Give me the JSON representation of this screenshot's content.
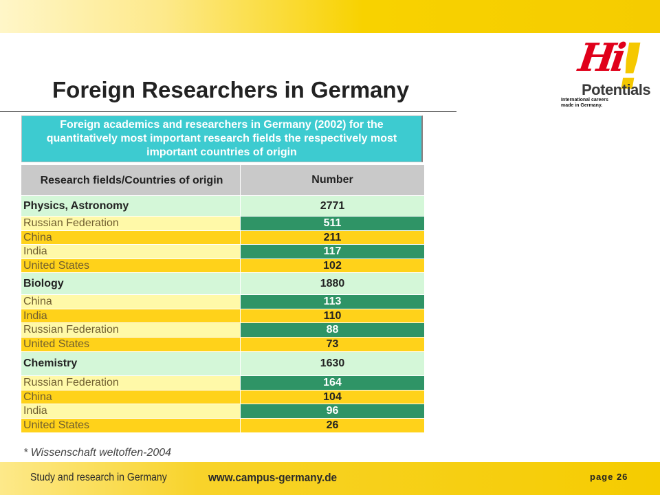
{
  "slide": {
    "title": "Foreign Researchers in Germany"
  },
  "logo": {
    "hi": "Hi",
    "exclamation": "!",
    "potentials": "Potentials",
    "tagline": "International careers made in Germany."
  },
  "table": {
    "caption": "Foreign academics and researchers in Germany (2002) for the quantitatively most important research fields the respectively most important countries of origin",
    "header": {
      "col1": "Research fields/Countries of origin",
      "col2": "Number"
    },
    "rows": [
      {
        "label": "Physics, Astronomy",
        "value": "2771"
      },
      {
        "label": "Russian Federation",
        "value": "511"
      },
      {
        "label": "China",
        "value": "211"
      },
      {
        "label": "India",
        "value": "117"
      },
      {
        "label": "United States",
        "value": "102"
      },
      {
        "label": "Biology",
        "value": "1880"
      },
      {
        "label": "China",
        "value": "113"
      },
      {
        "label": "India",
        "value": "110"
      },
      {
        "label": "Russian Federation",
        "value": "88"
      },
      {
        "label": "United States",
        "value": "73"
      },
      {
        "label": "Chemistry",
        "value": "1630"
      },
      {
        "label": "Russian Federation",
        "value": "164"
      },
      {
        "label": "China",
        "value": "104"
      },
      {
        "label": "India",
        "value": "96"
      },
      {
        "label": "United States",
        "value": "26"
      }
    ]
  },
  "footnote": "* Wissenschaft weltoffen-2004",
  "footer": {
    "left_text": "Study and research in Germany",
    "url": "www.campus-germany.de",
    "page": "page 26"
  },
  "colors": {
    "caption_bg": "#3dcbd0",
    "header_bg": "#c9c9c9",
    "field_bg": "#d4f7d8",
    "light_yellow": "#fff9a8",
    "yellow": "#ffd21a",
    "green": "#2f9466",
    "band_yellow": "#f5cc00"
  }
}
